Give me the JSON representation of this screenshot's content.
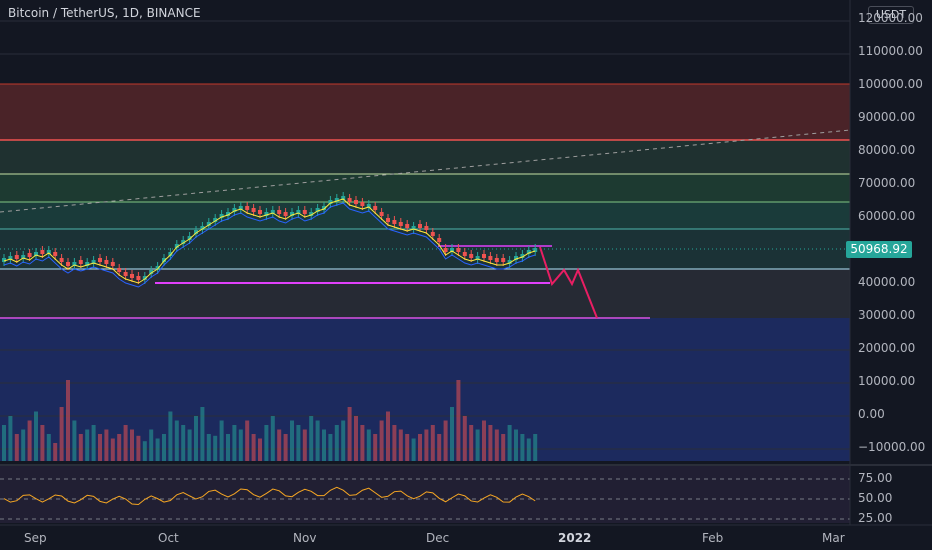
{
  "header": {
    "title": "Bitcoin / TetherUS, 1D, BINANCE"
  },
  "price_scale": {
    "currency": "USDT",
    "last_price": "50968.92",
    "labels": [
      "120000.00",
      "110000.00",
      "100000.00",
      "90000.00",
      "80000.00",
      "70000.00",
      "60000.00",
      "50000.00",
      "40000.00",
      "30000.00",
      "20000.00",
      "10000.00",
      "0.00",
      "−10000.00"
    ]
  },
  "indicator_scale": {
    "labels": [
      "75.00",
      "50.00",
      "25.00"
    ]
  },
  "time_axis": {
    "labels": [
      {
        "text": "Sep",
        "bold": false
      },
      {
        "text": "Oct",
        "bold": false
      },
      {
        "text": "Nov",
        "bold": false
      },
      {
        "text": "Dec",
        "bold": false
      },
      {
        "text": "2022",
        "bold": true
      },
      {
        "text": "Feb",
        "bold": false
      },
      {
        "text": "Mar",
        "bold": false
      }
    ]
  },
  "colors": {
    "up": "#26a69a",
    "down": "#ef5350",
    "drawing": "#e91e63",
    "support": "#ab47bc",
    "rsi": "#f5a623"
  }
}
